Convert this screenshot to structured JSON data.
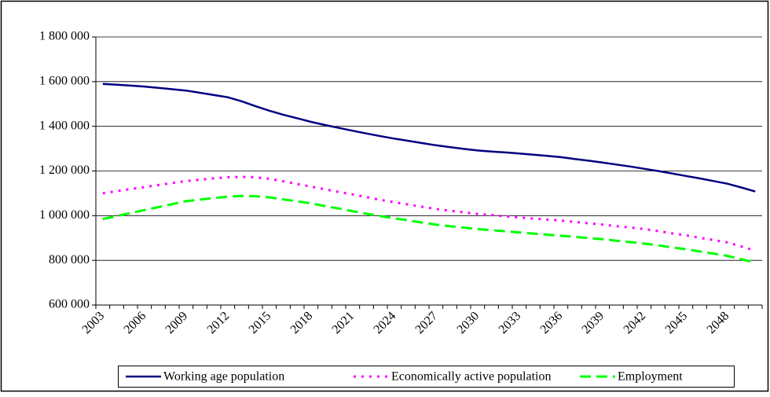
{
  "chart_data": {
    "type": "line",
    "categories": [
      "2003",
      null,
      null,
      "2006",
      null,
      null,
      "2009",
      null,
      null,
      "2012",
      null,
      null,
      "2015",
      null,
      null,
      "2018",
      null,
      null,
      "2021",
      null,
      null,
      "2024",
      null,
      null,
      "2027",
      null,
      null,
      "2030",
      null,
      null,
      "2033",
      null,
      null,
      "2036",
      null,
      null,
      "2039",
      null,
      null,
      "2042",
      null,
      null,
      "2045",
      null,
      null,
      "2048",
      null,
      null
    ],
    "series": [
      {
        "name": "Working age population",
        "color": "#000080",
        "values": [
          1590000,
          1586000,
          1582000,
          1578000,
          1572000,
          1566000,
          1560000,
          1550000,
          1540000,
          1530000,
          1512000,
          1490000,
          1470000,
          1452000,
          1436000,
          1420000,
          1406000,
          1393000,
          1380000,
          1368000,
          1356000,
          1345000,
          1335000,
          1325000,
          1315000,
          1307000,
          1299000,
          1292000,
          1287000,
          1283000,
          1278000,
          1273000,
          1268000,
          1262000,
          1254000,
          1246000,
          1238000,
          1229000,
          1220000,
          1210000,
          1200000,
          1189000,
          1178000,
          1167000,
          1155000,
          1143000,
          1126000,
          1108000
        ]
      },
      {
        "name": "Economically active population",
        "color": "#ff00ff",
        "values": [
          1100000,
          1110000,
          1119000,
          1128000,
          1137000,
          1146000,
          1155000,
          1161000,
          1167000,
          1172000,
          1174000,
          1172000,
          1165000,
          1154000,
          1142000,
          1130000,
          1118000,
          1106000,
          1095000,
          1083000,
          1071000,
          1060000,
          1050000,
          1040000,
          1030000,
          1022000,
          1015000,
          1008000,
          1003000,
          997000,
          992000,
          987000,
          983000,
          978000,
          972000,
          966000,
          960000,
          953000,
          947000,
          940000,
          931000,
          921000,
          912000,
          901000,
          891000,
          880000,
          862000,
          843000
        ]
      },
      {
        "name": "Employment",
        "color": "#00ff00",
        "values": [
          985000,
          998000,
          1012000,
          1025000,
          1038000,
          1052000,
          1065000,
          1072000,
          1079000,
          1085000,
          1088000,
          1087000,
          1082000,
          1073000,
          1064000,
          1055000,
          1043000,
          1032000,
          1020000,
          1009000,
          998000,
          988000,
          979000,
          969000,
          960000,
          953000,
          947000,
          940000,
          935000,
          930000,
          925000,
          920000,
          915000,
          910000,
          905000,
          900000,
          895000,
          888000,
          882000,
          875000,
          867000,
          858000,
          850000,
          840000,
          830000,
          820000,
          805000,
          790000
        ]
      }
    ],
    "ylim": [
      600000,
      1800000
    ],
    "yticks": [
      {
        "value": 600000,
        "label": "600 000"
      },
      {
        "value": 800000,
        "label": "800 000"
      },
      {
        "value": 1000000,
        "label": "1 000 000"
      },
      {
        "value": 1200000,
        "label": "1 200 000"
      },
      {
        "value": 1400000,
        "label": "1 400 000"
      },
      {
        "value": 1600000,
        "label": "1 600 000"
      },
      {
        "value": 1800000,
        "label": "1 800 000"
      }
    ],
    "grid": true
  }
}
